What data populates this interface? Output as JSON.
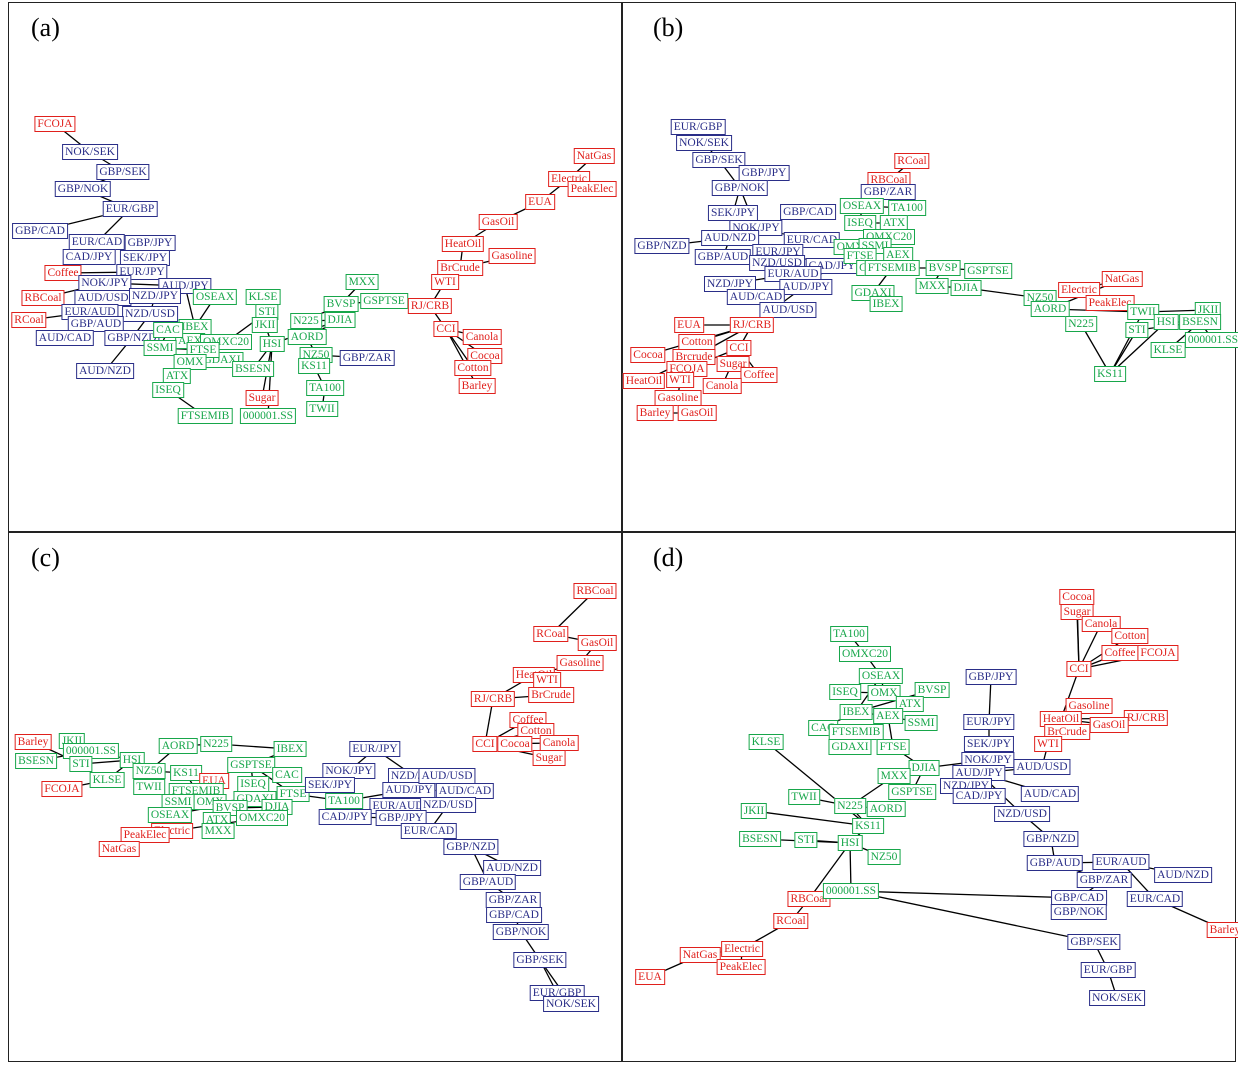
{
  "colors": {
    "red": "#e0201c",
    "blue": "#2a2e88",
    "green": "#17a64a"
  },
  "panels": [
    {
      "label": "(a)",
      "nodes": [
        [
          "FCOJA",
          "red"
        ],
        [
          "NOK/SEK",
          "blue"
        ],
        [
          "GBP/SEK",
          "blue"
        ],
        [
          "GBP/NOK",
          "blue"
        ],
        [
          "EUR/GBP",
          "blue"
        ],
        [
          "GBP/CAD",
          "blue"
        ],
        [
          "EUR/CAD",
          "blue"
        ],
        [
          "GBP/JPY",
          "blue"
        ],
        [
          "CAD/JPY",
          "blue"
        ],
        [
          "SEK/JPY",
          "blue"
        ],
        [
          "Coffee",
          "red"
        ],
        [
          "EUR/JPY",
          "blue"
        ],
        [
          "NOK/JPY",
          "blue"
        ],
        [
          "AUD/JPY",
          "blue"
        ],
        [
          "RBCoal",
          "red"
        ],
        [
          "AUD/USD",
          "blue"
        ],
        [
          "NZD/JPY",
          "blue"
        ],
        [
          "EUR/AUD",
          "blue"
        ],
        [
          "NZD/USD",
          "blue"
        ],
        [
          "RCoal",
          "red"
        ],
        [
          "GBP/AUD",
          "blue"
        ],
        [
          "GBP/NZD",
          "blue"
        ],
        [
          "AUD/CAD",
          "blue"
        ],
        [
          "AUD/NZD",
          "blue"
        ],
        [
          "OSEAX",
          "green"
        ],
        [
          "KLSE",
          "green"
        ],
        [
          "IBEX",
          "green"
        ],
        [
          "AEX",
          "green"
        ],
        [
          "OMXC20",
          "green"
        ],
        [
          "STI",
          "green"
        ],
        [
          "CAC",
          "green"
        ],
        [
          "GDAXI",
          "green"
        ],
        [
          "JKII",
          "green"
        ],
        [
          "SSMI",
          "green"
        ],
        [
          "FTSE",
          "green"
        ],
        [
          "HSI",
          "green"
        ],
        [
          "OMX",
          "green"
        ],
        [
          "ATX",
          "green"
        ],
        [
          "BSESN",
          "green"
        ],
        [
          "ISEQ",
          "green"
        ],
        [
          "Sugar",
          "red"
        ],
        [
          "FTSEMIB",
          "green"
        ],
        [
          "000001.SS",
          "green"
        ],
        [
          "MXX",
          "green"
        ],
        [
          "BVSP",
          "green"
        ],
        [
          "GSPTSE",
          "green"
        ],
        [
          "N225",
          "green"
        ],
        [
          "DJIA",
          "green"
        ],
        [
          "AORD",
          "green"
        ],
        [
          "NZ50",
          "green"
        ],
        [
          "KS11",
          "green"
        ],
        [
          "TA100",
          "green"
        ],
        [
          "TWII",
          "green"
        ],
        [
          "GBP/ZAR",
          "blue"
        ],
        [
          "NatGas",
          "red"
        ],
        [
          "Electric",
          "red"
        ],
        [
          "PeakElec",
          "red"
        ],
        [
          "EUA",
          "red"
        ],
        [
          "GasOil",
          "red"
        ],
        [
          "HeatOil",
          "red"
        ],
        [
          "Gasoline",
          "red"
        ],
        [
          "BrCrude",
          "red"
        ],
        [
          "WTI",
          "red"
        ],
        [
          "RJ/CRB",
          "red"
        ],
        [
          "CCI",
          "red"
        ],
        [
          "Canola",
          "red"
        ],
        [
          "Cocoa",
          "red"
        ],
        [
          "Cotton",
          "red"
        ],
        [
          "Barley",
          "red"
        ]
      ]
    },
    {
      "label": "(b)",
      "nodes": [
        [
          "EUR/GBP",
          "blue"
        ],
        [
          "NOK/SEK",
          "blue"
        ],
        [
          "GBP/SEK",
          "blue"
        ],
        [
          "GBP/JPY",
          "blue"
        ],
        [
          "GBP/NOK",
          "blue"
        ],
        [
          "SEK/JPY",
          "blue"
        ],
        [
          "GBP/CAD",
          "blue"
        ],
        [
          "NOK/JPY",
          "blue"
        ],
        [
          "AUD/NZD",
          "blue"
        ],
        [
          "EUR/CAD",
          "blue"
        ],
        [
          "GBP/NZD",
          "blue"
        ],
        [
          "EUR/JPY",
          "blue"
        ],
        [
          "GBP/AUD",
          "blue"
        ],
        [
          "NZD/USD",
          "blue"
        ],
        [
          "CAD/JPY",
          "blue"
        ],
        [
          "EUR/AUD",
          "blue"
        ],
        [
          "NZD/JPY",
          "blue"
        ],
        [
          "AUD/JPY",
          "blue"
        ],
        [
          "AUD/CAD",
          "blue"
        ],
        [
          "AUD/USD",
          "blue"
        ],
        [
          "RCoal",
          "red"
        ],
        [
          "RBCoal",
          "red"
        ],
        [
          "GBP/ZAR",
          "blue"
        ],
        [
          "OSEAX",
          "green"
        ],
        [
          "TA100",
          "green"
        ],
        [
          "ISEQ",
          "green"
        ],
        [
          "ATX",
          "green"
        ],
        [
          "OMXC20",
          "green"
        ],
        [
          "OMX",
          "green"
        ],
        [
          "SSMI",
          "green"
        ],
        [
          "FTSE",
          "green"
        ],
        [
          "AEX",
          "green"
        ],
        [
          "CAC",
          "green"
        ],
        [
          "FTSEMIB",
          "green"
        ],
        [
          "BVSP",
          "green"
        ],
        [
          "GSPTSE",
          "green"
        ],
        [
          "GDAXI",
          "green"
        ],
        [
          "IBEX",
          "green"
        ],
        [
          "MXX",
          "green"
        ],
        [
          "DJIA",
          "green"
        ],
        [
          "NZ50",
          "green"
        ],
        [
          "AORD",
          "green"
        ],
        [
          "N225",
          "green"
        ],
        [
          "KS11",
          "green"
        ],
        [
          "NatGas",
          "red"
        ],
        [
          "Electric",
          "red"
        ],
        [
          "PeakElec",
          "red"
        ],
        [
          "TWII",
          "green"
        ],
        [
          "JKII",
          "green"
        ],
        [
          "HSI",
          "green"
        ],
        [
          "BSESN",
          "green"
        ],
        [
          "STI",
          "green"
        ],
        [
          "KLSE",
          "green"
        ],
        [
          "000001.SS",
          "green"
        ],
        [
          "EUA",
          "red"
        ],
        [
          "RJ/CRB",
          "red"
        ],
        [
          "Cotton",
          "red"
        ],
        [
          "Cocoa",
          "red"
        ],
        [
          "Brcrude",
          "red"
        ],
        [
          "CCI",
          "red"
        ],
        [
          "FCOJA",
          "red"
        ],
        [
          "Sugar",
          "red"
        ],
        [
          "Coffee",
          "red"
        ],
        [
          "HeatOil",
          "red"
        ],
        [
          "WTI",
          "red"
        ],
        [
          "Canola",
          "red"
        ],
        [
          "Gasoline",
          "red"
        ],
        [
          "Barley",
          "red"
        ],
        [
          "GasOil",
          "red"
        ]
      ]
    },
    {
      "label": "(c)",
      "nodes": [
        [
          "RBCoal",
          "red"
        ],
        [
          "RCoal",
          "red"
        ],
        [
          "GasOil",
          "red"
        ],
        [
          "Gasoline",
          "red"
        ],
        [
          "HeatOil",
          "red"
        ],
        [
          "WTI",
          "red"
        ],
        [
          "RJ/CRB",
          "red"
        ],
        [
          "BrCrude",
          "red"
        ],
        [
          "Coffee",
          "red"
        ],
        [
          "Cotton",
          "red"
        ],
        [
          "CCI",
          "red"
        ],
        [
          "Cocoa",
          "red"
        ],
        [
          "Canola",
          "red"
        ],
        [
          "Sugar",
          "red"
        ],
        [
          "Barley",
          "red"
        ],
        [
          "JKII",
          "green"
        ],
        [
          "000001.SS",
          "green"
        ],
        [
          "BSESN",
          "green"
        ],
        [
          "STI",
          "green"
        ],
        [
          "HSI",
          "green"
        ],
        [
          "AORD",
          "green"
        ],
        [
          "N225",
          "green"
        ],
        [
          "IBEX",
          "green"
        ],
        [
          "NZ50",
          "green"
        ],
        [
          "KS11",
          "green"
        ],
        [
          "KLSE",
          "green"
        ],
        [
          "TWII",
          "green"
        ],
        [
          "FCOJA",
          "red"
        ],
        [
          "GSPTSE",
          "green"
        ],
        [
          "CAC",
          "green"
        ],
        [
          "EUA",
          "red"
        ],
        [
          "FTSEMIB",
          "green"
        ],
        [
          "ISEQ",
          "green"
        ],
        [
          "FTSE",
          "green"
        ],
        [
          "SSMI",
          "green"
        ],
        [
          "OMX",
          "green"
        ],
        [
          "GDAXI",
          "green"
        ],
        [
          "OSEAX",
          "green"
        ],
        [
          "BVSP",
          "green"
        ],
        [
          "DJIA",
          "green"
        ],
        [
          "ATX",
          "green"
        ],
        [
          "OMXC20",
          "green"
        ],
        [
          "Electric",
          "red"
        ],
        [
          "PeakElec",
          "red"
        ],
        [
          "MXX",
          "green"
        ],
        [
          "NatGas",
          "red"
        ],
        [
          "EUR/JPY",
          "blue"
        ],
        [
          "NOK/JPY",
          "blue"
        ],
        [
          "SEK/JPY",
          "blue"
        ],
        [
          "NZD/JPY",
          "blue"
        ],
        [
          "AUD/JPY",
          "blue"
        ],
        [
          "AUD/USD",
          "blue"
        ],
        [
          "AUD/CAD",
          "blue"
        ],
        [
          "TA100",
          "green"
        ],
        [
          "EUR/AUD",
          "blue"
        ],
        [
          "NZD/USD",
          "blue"
        ],
        [
          "CAD/JPY",
          "blue"
        ],
        [
          "GBP/JPY",
          "blue"
        ],
        [
          "EUR/CAD",
          "blue"
        ],
        [
          "GBP/NZD",
          "blue"
        ],
        [
          "AUD/NZD",
          "blue"
        ],
        [
          "GBP/AUD",
          "blue"
        ],
        [
          "GBP/ZAR",
          "blue"
        ],
        [
          "GBP/CAD",
          "blue"
        ],
        [
          "GBP/NOK",
          "blue"
        ],
        [
          "GBP/SEK",
          "blue"
        ],
        [
          "EUR/GBP",
          "blue"
        ],
        [
          "NOK/SEK",
          "blue"
        ]
      ]
    },
    {
      "label": "(d)",
      "nodes": [
        [
          "Cocoa",
          "red"
        ],
        [
          "Sugar",
          "red"
        ],
        [
          "Canola",
          "red"
        ],
        [
          "Cotton",
          "red"
        ],
        [
          "CCI",
          "red"
        ],
        [
          "Coffee",
          "red"
        ],
        [
          "FCOJA",
          "red"
        ],
        [
          "Gasoline",
          "red"
        ],
        [
          "HeatOil",
          "red"
        ],
        [
          "RJ/CRB",
          "red"
        ],
        [
          "BrCrude",
          "red"
        ],
        [
          "GasOil",
          "red"
        ],
        [
          "WTI",
          "red"
        ],
        [
          "TA100",
          "green"
        ],
        [
          "OMXC20",
          "green"
        ],
        [
          "OSEAX",
          "green"
        ],
        [
          "GBP/JPY",
          "blue"
        ],
        [
          "ISEQ",
          "green"
        ],
        [
          "OMX",
          "green"
        ],
        [
          "BVSP",
          "green"
        ],
        [
          "IBEX",
          "green"
        ],
        [
          "ATX",
          "green"
        ],
        [
          "CAC",
          "green"
        ],
        [
          "AEX",
          "green"
        ],
        [
          "SSMI",
          "green"
        ],
        [
          "EUR/JPY",
          "blue"
        ],
        [
          "KLSE",
          "green"
        ],
        [
          "FTSEMIB",
          "green"
        ],
        [
          "GDAXI",
          "green"
        ],
        [
          "FTSE",
          "green"
        ],
        [
          "SEK/JPY",
          "blue"
        ],
        [
          "NOK/JPY",
          "blue"
        ],
        [
          "DJIA",
          "green"
        ],
        [
          "AUD/USD",
          "blue"
        ],
        [
          "MXX",
          "green"
        ],
        [
          "AUD/JPY",
          "blue"
        ],
        [
          "NZD/JPY",
          "blue"
        ],
        [
          "GSPTSE",
          "green"
        ],
        [
          "CAD/JPY",
          "blue"
        ],
        [
          "AUD/CAD",
          "blue"
        ],
        [
          "TWII",
          "green"
        ],
        [
          "N225",
          "green"
        ],
        [
          "AORD",
          "green"
        ],
        [
          "NZD/USD",
          "blue"
        ],
        [
          "JKII",
          "green"
        ],
        [
          "KS11",
          "green"
        ],
        [
          "GBP/NZD",
          "blue"
        ],
        [
          "BSESN",
          "green"
        ],
        [
          "STI",
          "green"
        ],
        [
          "HSI",
          "green"
        ],
        [
          "NZ50",
          "green"
        ],
        [
          "GBP/AUD",
          "blue"
        ],
        [
          "EUR/AUD",
          "blue"
        ],
        [
          "GBP/ZAR",
          "blue"
        ],
        [
          "AUD/NZD",
          "blue"
        ],
        [
          "GBP/CAD",
          "blue"
        ],
        [
          "EUR/CAD",
          "blue"
        ],
        [
          "RBCoal",
          "red"
        ],
        [
          "000001.SS",
          "green"
        ],
        [
          "GBP/NOK",
          "blue"
        ],
        [
          "Barley",
          "red"
        ],
        [
          "RCoal",
          "red"
        ],
        [
          "GBP/SEK",
          "blue"
        ],
        [
          "NatGas",
          "red"
        ],
        [
          "Electric",
          "red"
        ],
        [
          "PeakElec",
          "red"
        ],
        [
          "EUR/GBP",
          "blue"
        ],
        [
          "EUA",
          "red"
        ],
        [
          "NOK/SEK",
          "blue"
        ]
      ]
    }
  ]
}
